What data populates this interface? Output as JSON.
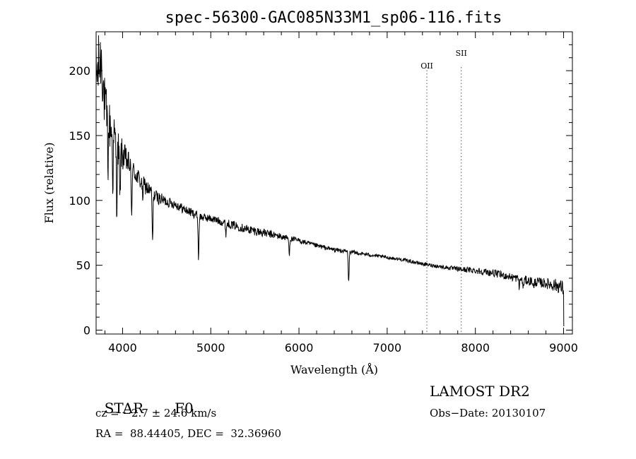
{
  "chart_data": {
    "type": "line",
    "title": "spec-56300-GAC085N33M1_sp06-116.fits",
    "xlabel": "Wavelength (Å)",
    "ylabel": "Flux (relative)",
    "xlim": [
      3700,
      9100
    ],
    "ylim": [
      -3,
      230
    ],
    "x_ticks": [
      4000,
      5000,
      6000,
      7000,
      8000,
      9000
    ],
    "y_ticks": [
      0,
      50,
      100,
      150,
      200
    ],
    "grid": false,
    "line_markers": [
      {
        "label": "OII",
        "wavelength": 7450
      },
      {
        "label": "SII",
        "wavelength": 7840
      }
    ],
    "continuum": [
      [
        3700,
        195
      ],
      [
        3760,
        210
      ],
      [
        3800,
        170
      ],
      [
        3850,
        158
      ],
      [
        3900,
        150
      ],
      [
        3950,
        140
      ],
      [
        4000,
        135
      ],
      [
        4100,
        125
      ],
      [
        4200,
        115
      ],
      [
        4300,
        108
      ],
      [
        4400,
        102
      ],
      [
        4500,
        99
      ],
      [
        4600,
        97
      ],
      [
        4700,
        93
      ],
      [
        4800,
        90
      ],
      [
        4900,
        87
      ],
      [
        5000,
        86
      ],
      [
        5200,
        82
      ],
      [
        5400,
        78
      ],
      [
        5600,
        75
      ],
      [
        5800,
        72
      ],
      [
        6000,
        69
      ],
      [
        6200,
        65
      ],
      [
        6400,
        62
      ],
      [
        6600,
        60
      ],
      [
        6800,
        58
      ],
      [
        7000,
        56
      ],
      [
        7200,
        54
      ],
      [
        7400,
        51
      ],
      [
        7600,
        49
      ],
      [
        7800,
        47
      ],
      [
        8000,
        46
      ],
      [
        8200,
        44
      ],
      [
        8400,
        41
      ],
      [
        8600,
        38
      ],
      [
        8800,
        36
      ],
      [
        8950,
        34
      ],
      [
        9000,
        32
      ]
    ],
    "absorption_lines": [
      {
        "wavelength": 3835,
        "depth": 30
      },
      {
        "wavelength": 3889,
        "depth": 35
      },
      {
        "wavelength": 3934,
        "depth": 45
      },
      {
        "wavelength": 3970,
        "depth": 40
      },
      {
        "wavelength": 4102,
        "depth": 35
      },
      {
        "wavelength": 4227,
        "depth": 10
      },
      {
        "wavelength": 4340,
        "depth": 38
      },
      {
        "wavelength": 4861,
        "depth": 33
      },
      {
        "wavelength": 5172,
        "depth": 8
      },
      {
        "wavelength": 5890,
        "depth": 12
      },
      {
        "wavelength": 6563,
        "depth": 24
      },
      {
        "wavelength": 8498,
        "depth": 6
      },
      {
        "wavelength": 8542,
        "depth": 7
      },
      {
        "wavelength": 8662,
        "depth": 6
      }
    ],
    "noise_profile": [
      [
        3700,
        28
      ],
      [
        3800,
        22
      ],
      [
        3950,
        14
      ],
      [
        4100,
        8
      ],
      [
        4500,
        4
      ],
      [
        5000,
        3
      ],
      [
        5500,
        3.5
      ],
      [
        6000,
        2
      ],
      [
        7000,
        1.2
      ],
      [
        7600,
        1.5
      ],
      [
        8000,
        2.5
      ],
      [
        8400,
        3
      ],
      [
        8800,
        4
      ],
      [
        9000,
        6
      ]
    ],
    "final_drop": [
      9000,
      3
    ]
  },
  "footer": {
    "object_class": "STAR",
    "subclass": "F0",
    "velocity": "cz = −2.7 ± 24.6 km/s",
    "coords": "RA =  88.44405, DEC =  32.36960",
    "survey": "LAMOST DR2",
    "obs_date": "Obs−Date: 20130107"
  }
}
